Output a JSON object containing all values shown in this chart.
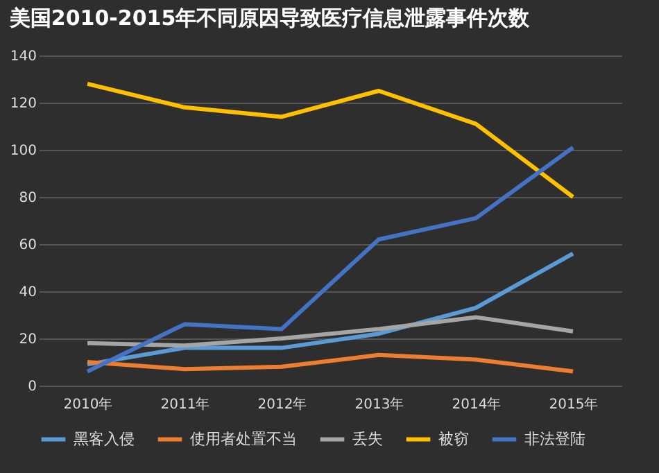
{
  "chart_data": {
    "type": "line",
    "title": "美国2010-2015年不同原因导致医疗信息泄露事件次数",
    "categories": [
      "2010年",
      "2011年",
      "2012年",
      "2013年",
      "2014年",
      "2015年"
    ],
    "series": [
      {
        "name": "黑客入侵",
        "color": "#5b9bd5",
        "values": [
          9,
          16,
          16,
          22,
          33,
          56
        ]
      },
      {
        "name": "使用者处置不当",
        "color": "#ed7d31",
        "values": [
          10,
          7,
          8,
          13,
          11,
          6
        ]
      },
      {
        "name": "丢失",
        "color": "#a5a5a5",
        "values": [
          18,
          17,
          20,
          24,
          29,
          23
        ]
      },
      {
        "name": "被窃",
        "color": "#ffc000",
        "values": [
          128,
          118,
          114,
          125,
          111,
          80
        ]
      },
      {
        "name": "非法登陆",
        "color": "#4472c4",
        "values": [
          6,
          26,
          24,
          62,
          71,
          101
        ]
      }
    ],
    "ylim": [
      0,
      140
    ],
    "yticks": [
      0,
      20,
      40,
      60,
      80,
      100,
      120,
      140
    ],
    "grid": "y",
    "legend": "bottom",
    "marker": "none",
    "line_style": "solid"
  }
}
